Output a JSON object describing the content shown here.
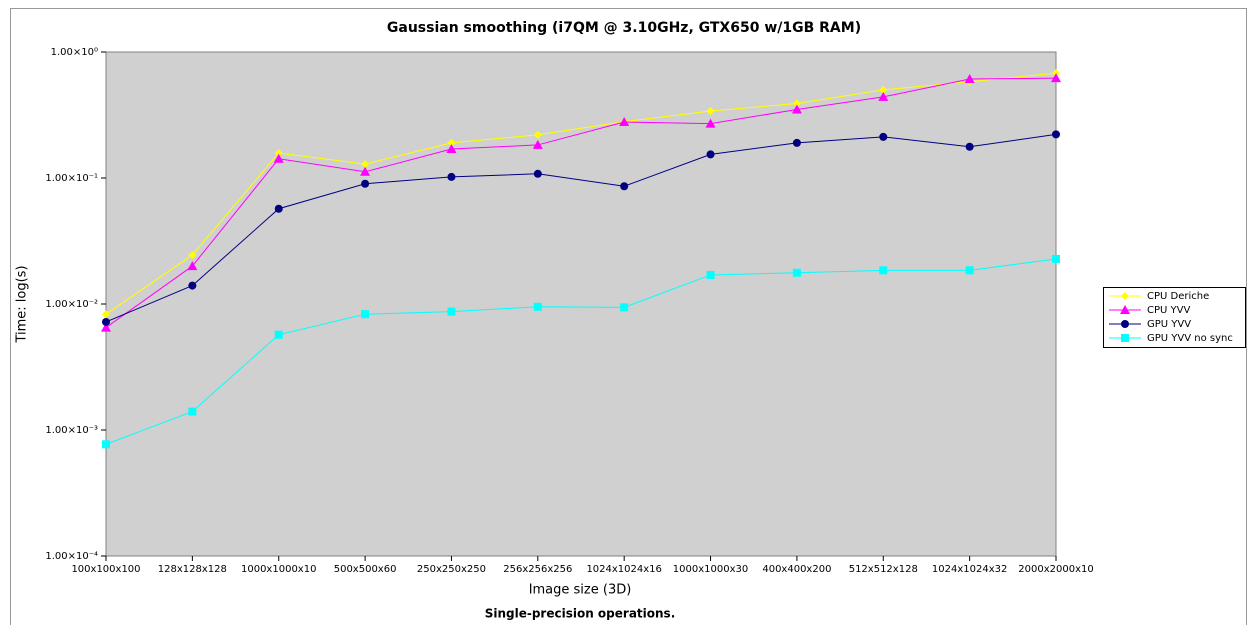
{
  "chart_data": {
    "type": "line",
    "title": "Gaussian smoothing (i7QM @ 3.10GHz, GTX650 w/1GB RAM)",
    "subtitle": "Single-precision operations.",
    "x_label": "Image size (3D)",
    "y_label": "Time: log(s)",
    "yscale": "log",
    "grid": false,
    "legend": "right",
    "plot_background": "#d0d0d0",
    "categories": [
      "100x100x100",
      "128x128x128",
      "1000x1000x10",
      "500x500x60",
      "250x250x250",
      "256x256x256",
      "1024x1024x16",
      "1000x1000x30",
      "400x400x200",
      "512x512x128",
      "1024x1024x32",
      "2000x2000x10"
    ],
    "ylim": [
      0.0001,
      1
    ],
    "yticks": [
      {
        "value": 0.0001,
        "label": "1.00×10⁻⁴"
      },
      {
        "value": 0.001,
        "label": "1.00×10⁻³"
      },
      {
        "value": 0.01,
        "label": "1.00×10⁻²"
      },
      {
        "value": 0.1,
        "label": "1.00×10⁻¹"
      },
      {
        "value": 1,
        "label": "1.00×10⁰"
      }
    ],
    "series": [
      {
        "name": "CPU Deriche",
        "color": "#ffff00",
        "marker": "diamond",
        "values": [
          0.0083,
          0.0245,
          0.158,
          0.129,
          0.19,
          0.22,
          0.28,
          0.34,
          0.39,
          0.5,
          0.58,
          0.68
        ]
      },
      {
        "name": "CPU YVV",
        "color": "#ff00ff",
        "marker": "triangle",
        "values": [
          0.0065,
          0.02,
          0.142,
          0.112,
          0.17,
          0.183,
          0.278,
          0.27,
          0.35,
          0.44,
          0.61,
          0.62
        ]
      },
      {
        "name": "GPU YVV",
        "color": "#000080",
        "marker": "circle",
        "values": [
          0.0072,
          0.014,
          0.057,
          0.09,
          0.102,
          0.108,
          0.086,
          0.154,
          0.19,
          0.212,
          0.177,
          0.222
        ]
      },
      {
        "name": "GPU YVV no sync",
        "color": "#00ffff",
        "marker": "square",
        "values": [
          0.00077,
          0.0014,
          0.0057,
          0.0083,
          0.0087,
          0.0095,
          0.0094,
          0.017,
          0.0177,
          0.0185,
          0.0185,
          0.0228
        ]
      }
    ]
  }
}
